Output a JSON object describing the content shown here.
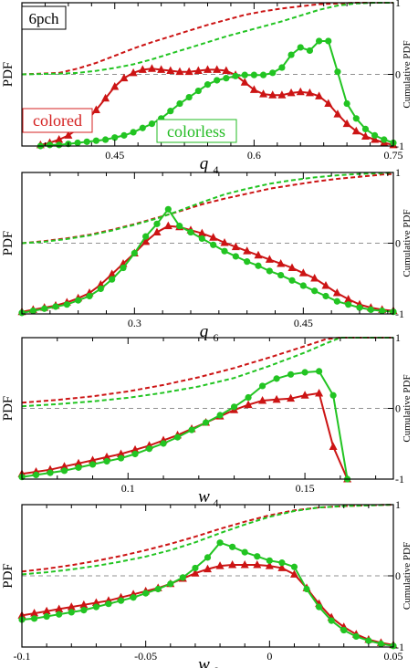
{
  "figure_label": "6pch",
  "legend": [
    {
      "text": "colored",
      "color": "#d42020"
    },
    {
      "text": "colorless",
      "color": "#22bb22"
    }
  ],
  "colors": {
    "colored": "#cc1414",
    "colorless": "#22c422",
    "reference_line": "#909090"
  },
  "chart_data": [
    {
      "type": "line",
      "xlabel": "q",
      "xlabel_sub": "4",
      "ylabel_left": "PDF",
      "ylabel_right": "Cumulative PDF",
      "xlim": [
        0.35,
        0.75
      ],
      "xticks": [
        "0.45",
        "0.6",
        "0.75"
      ],
      "right_ticks": [
        "1",
        "0",
        "-1"
      ],
      "series": [
        {
          "name": "colored",
          "marker": "triangle",
          "x": [
            0.37,
            0.38,
            0.39,
            0.4,
            0.41,
            0.42,
            0.43,
            0.44,
            0.45,
            0.46,
            0.47,
            0.48,
            0.49,
            0.5,
            0.51,
            0.52,
            0.53,
            0.54,
            0.55,
            0.56,
            0.57,
            0.58,
            0.59,
            0.6,
            0.61,
            0.62,
            0.63,
            0.64,
            0.65,
            0.66,
            0.67,
            0.68,
            0.69,
            0.7,
            0.71,
            0.72,
            0.73,
            0.74,
            0.75
          ],
          "y": [
            0.01,
            0.03,
            0.06,
            0.1,
            0.16,
            0.24,
            0.34,
            0.45,
            0.56,
            0.64,
            0.69,
            0.72,
            0.73,
            0.72,
            0.71,
            0.7,
            0.7,
            0.71,
            0.72,
            0.72,
            0.71,
            0.67,
            0.6,
            0.53,
            0.49,
            0.48,
            0.48,
            0.5,
            0.51,
            0.5,
            0.47,
            0.4,
            0.3,
            0.21,
            0.14,
            0.09,
            0.06,
            0.03,
            0.01
          ]
        },
        {
          "name": "colorless",
          "marker": "circle",
          "x": [
            0.37,
            0.38,
            0.39,
            0.4,
            0.41,
            0.42,
            0.43,
            0.44,
            0.45,
            0.46,
            0.47,
            0.48,
            0.49,
            0.5,
            0.51,
            0.52,
            0.53,
            0.54,
            0.55,
            0.56,
            0.57,
            0.58,
            0.59,
            0.6,
            0.61,
            0.62,
            0.63,
            0.64,
            0.65,
            0.66,
            0.67,
            0.68,
            0.69,
            0.7,
            0.71,
            0.72,
            0.73,
            0.74,
            0.75
          ],
          "y": [
            0.0,
            0.01,
            0.01,
            0.02,
            0.03,
            0.04,
            0.05,
            0.06,
            0.08,
            0.1,
            0.13,
            0.17,
            0.21,
            0.26,
            0.33,
            0.4,
            0.46,
            0.52,
            0.58,
            0.62,
            0.64,
            0.66,
            0.67,
            0.67,
            0.67,
            0.69,
            0.74,
            0.86,
            0.93,
            0.9,
            0.99,
            0.99,
            0.7,
            0.4,
            0.26,
            0.16,
            0.1,
            0.06,
            0.03
          ]
        },
        {
          "name": "colored",
          "style": "dashed",
          "axis": "right",
          "x": [
            0.35,
            0.39,
            0.41,
            0.43,
            0.45,
            0.47,
            0.49,
            0.51,
            0.53,
            0.55,
            0.57,
            0.59,
            0.61,
            0.63,
            0.65,
            0.67,
            0.69,
            0.71,
            0.73,
            0.75
          ],
          "y": [
            0.0,
            0.02,
            0.08,
            0.16,
            0.26,
            0.36,
            0.45,
            0.53,
            0.61,
            0.69,
            0.76,
            0.83,
            0.88,
            0.92,
            0.95,
            0.98,
            0.99,
            1.0,
            1.0,
            1.0
          ]
        },
        {
          "name": "colorless",
          "style": "dashed",
          "axis": "right",
          "x": [
            0.35,
            0.39,
            0.41,
            0.43,
            0.45,
            0.47,
            0.49,
            0.51,
            0.53,
            0.55,
            0.57,
            0.59,
            0.61,
            0.63,
            0.65,
            0.67,
            0.69,
            0.71,
            0.73,
            0.75
          ],
          "y": [
            0.0,
            0.01,
            0.02,
            0.05,
            0.09,
            0.14,
            0.21,
            0.29,
            0.37,
            0.45,
            0.53,
            0.6,
            0.67,
            0.74,
            0.82,
            0.9,
            0.96,
            0.99,
            1.0,
            1.0
          ]
        }
      ]
    },
    {
      "type": "line",
      "xlabel": "q",
      "xlabel_sub": "6",
      "ylabel_left": "PDF",
      "ylabel_right": "Cumulative PDF",
      "xlim": [
        0.2,
        0.53
      ],
      "xticks": [
        "0.3",
        "0.45"
      ],
      "right_ticks": [
        "1",
        "0",
        "-1"
      ],
      "series": [
        {
          "name": "colored",
          "marker": "triangle",
          "x": [
            0.2,
            0.21,
            0.22,
            0.23,
            0.24,
            0.25,
            0.26,
            0.27,
            0.28,
            0.29,
            0.3,
            0.31,
            0.32,
            0.33,
            0.34,
            0.35,
            0.36,
            0.37,
            0.38,
            0.39,
            0.4,
            0.41,
            0.42,
            0.43,
            0.44,
            0.45,
            0.46,
            0.47,
            0.48,
            0.49,
            0.5,
            0.51,
            0.52,
            0.53
          ],
          "y": [
            0.02,
            0.04,
            0.06,
            0.08,
            0.11,
            0.15,
            0.2,
            0.28,
            0.38,
            0.48,
            0.58,
            0.69,
            0.78,
            0.84,
            0.83,
            0.8,
            0.77,
            0.73,
            0.68,
            0.64,
            0.6,
            0.56,
            0.52,
            0.48,
            0.44,
            0.39,
            0.34,
            0.27,
            0.2,
            0.14,
            0.09,
            0.06,
            0.04,
            0.03
          ]
        },
        {
          "name": "colorless",
          "marker": "circle",
          "x": [
            0.2,
            0.21,
            0.22,
            0.23,
            0.24,
            0.25,
            0.26,
            0.27,
            0.28,
            0.29,
            0.3,
            0.31,
            0.32,
            0.33,
            0.34,
            0.35,
            0.36,
            0.37,
            0.38,
            0.39,
            0.4,
            0.41,
            0.42,
            0.43,
            0.44,
            0.45,
            0.46,
            0.47,
            0.48,
            0.49,
            0.5,
            0.51,
            0.52,
            0.53
          ],
          "y": [
            0.01,
            0.03,
            0.05,
            0.07,
            0.09,
            0.13,
            0.17,
            0.24,
            0.33,
            0.44,
            0.58,
            0.74,
            0.86,
            1.0,
            0.84,
            0.78,
            0.72,
            0.66,
            0.6,
            0.55,
            0.5,
            0.46,
            0.41,
            0.37,
            0.32,
            0.27,
            0.22,
            0.17,
            0.12,
            0.09,
            0.06,
            0.04,
            0.03,
            0.02
          ]
        },
        {
          "name": "colored",
          "style": "dashed",
          "axis": "right",
          "x": [
            0.2,
            0.22,
            0.24,
            0.26,
            0.28,
            0.3,
            0.32,
            0.34,
            0.36,
            0.38,
            0.4,
            0.42,
            0.44,
            0.46,
            0.48,
            0.5,
            0.52,
            0.53
          ],
          "y": [
            0.0,
            0.03,
            0.07,
            0.12,
            0.19,
            0.27,
            0.36,
            0.45,
            0.55,
            0.63,
            0.7,
            0.77,
            0.82,
            0.87,
            0.91,
            0.94,
            0.97,
            0.98
          ]
        },
        {
          "name": "colorless",
          "style": "dashed",
          "axis": "right",
          "x": [
            0.2,
            0.22,
            0.24,
            0.26,
            0.28,
            0.3,
            0.32,
            0.34,
            0.36,
            0.38,
            0.4,
            0.42,
            0.44,
            0.46,
            0.48,
            0.5,
            0.52,
            0.53
          ],
          "y": [
            0.0,
            0.02,
            0.06,
            0.11,
            0.18,
            0.26,
            0.35,
            0.46,
            0.58,
            0.69,
            0.77,
            0.84,
            0.89,
            0.93,
            0.96,
            0.98,
            0.99,
            1.0
          ]
        }
      ]
    },
    {
      "type": "line",
      "xlabel": "w",
      "xlabel_sub": "4",
      "ylabel_left": "PDF",
      "ylabel_right": "Cumulative PDF",
      "xlim": [
        0.07,
        0.175
      ],
      "xticks": [
        "0.1",
        "0.15"
      ],
      "right_ticks": [
        "1",
        "0",
        "-1"
      ],
      "series": [
        {
          "name": "colored",
          "marker": "triangle",
          "x": [
            0.07,
            0.074,
            0.078,
            0.082,
            0.086,
            0.09,
            0.094,
            0.098,
            0.102,
            0.106,
            0.11,
            0.114,
            0.118,
            0.122,
            0.126,
            0.13,
            0.134,
            0.138,
            0.142,
            0.146,
            0.15,
            0.154,
            0.158,
            0.162
          ],
          "y": [
            0.05,
            0.07,
            0.09,
            0.12,
            0.15,
            0.18,
            0.21,
            0.24,
            0.28,
            0.32,
            0.37,
            0.42,
            0.48,
            0.54,
            0.6,
            0.66,
            0.71,
            0.75,
            0.76,
            0.77,
            0.8,
            0.82,
            0.31,
            0.0
          ]
        },
        {
          "name": "colorless",
          "marker": "circle",
          "x": [
            0.07,
            0.074,
            0.078,
            0.082,
            0.086,
            0.09,
            0.094,
            0.098,
            0.102,
            0.106,
            0.11,
            0.114,
            0.118,
            0.122,
            0.126,
            0.13,
            0.134,
            0.138,
            0.142,
            0.146,
            0.15,
            0.154,
            0.158,
            0.162
          ],
          "y": [
            0.02,
            0.04,
            0.06,
            0.08,
            0.11,
            0.14,
            0.17,
            0.2,
            0.24,
            0.29,
            0.34,
            0.4,
            0.47,
            0.54,
            0.61,
            0.69,
            0.78,
            0.89,
            0.96,
            1.0,
            1.02,
            1.03,
            0.8,
            0.0
          ]
        },
        {
          "name": "colored",
          "style": "dashed",
          "axis": "right",
          "x": [
            0.07,
            0.08,
            0.09,
            0.1,
            0.11,
            0.12,
            0.13,
            0.14,
            0.15,
            0.156,
            0.16,
            0.175
          ],
          "y": [
            0.08,
            0.12,
            0.17,
            0.24,
            0.33,
            0.44,
            0.57,
            0.72,
            0.88,
            0.98,
            1.0,
            1.0
          ]
        },
        {
          "name": "colorless",
          "style": "dashed",
          "axis": "right",
          "x": [
            0.07,
            0.08,
            0.09,
            0.1,
            0.11,
            0.12,
            0.13,
            0.14,
            0.15,
            0.156,
            0.16,
            0.175
          ],
          "y": [
            0.03,
            0.06,
            0.1,
            0.15,
            0.22,
            0.31,
            0.43,
            0.6,
            0.79,
            0.92,
            1.0,
            1.0
          ]
        }
      ]
    },
    {
      "type": "line",
      "xlabel": "w",
      "xlabel_sub": "6",
      "ylabel_left": "PDF",
      "ylabel_right": "Cumulative PDF",
      "xlim": [
        -0.1,
        0.05
      ],
      "xticks": [
        "-0.1",
        "-0.05",
        "0",
        "0.05"
      ],
      "right_ticks": [
        "1",
        "0",
        "-1"
      ],
      "series": [
        {
          "name": "colored",
          "marker": "triangle",
          "x": [
            -0.1,
            -0.095,
            -0.09,
            -0.085,
            -0.08,
            -0.075,
            -0.07,
            -0.065,
            -0.06,
            -0.055,
            -0.05,
            -0.045,
            -0.04,
            -0.035,
            -0.03,
            -0.025,
            -0.02,
            -0.015,
            -0.01,
            -0.005,
            0.0,
            0.005,
            0.01,
            0.015,
            0.02,
            0.025,
            0.03,
            0.035,
            0.04,
            0.045,
            0.05
          ],
          "y": [
            0.3,
            0.32,
            0.34,
            0.36,
            0.38,
            0.4,
            0.42,
            0.44,
            0.47,
            0.5,
            0.53,
            0.56,
            0.6,
            0.65,
            0.7,
            0.74,
            0.77,
            0.78,
            0.78,
            0.78,
            0.77,
            0.75,
            0.69,
            0.56,
            0.41,
            0.28,
            0.19,
            0.12,
            0.07,
            0.04,
            0.02
          ]
        },
        {
          "name": "colorless",
          "marker": "circle",
          "x": [
            -0.1,
            -0.095,
            -0.09,
            -0.085,
            -0.08,
            -0.075,
            -0.07,
            -0.065,
            -0.06,
            -0.055,
            -0.05,
            -0.045,
            -0.04,
            -0.035,
            -0.03,
            -0.025,
            -0.02,
            -0.015,
            -0.01,
            -0.005,
            0.0,
            0.005,
            0.01,
            0.015,
            0.02,
            0.025,
            0.03,
            0.035,
            0.04,
            0.045,
            0.05
          ],
          "y": [
            0.26,
            0.27,
            0.29,
            0.31,
            0.33,
            0.35,
            0.38,
            0.41,
            0.44,
            0.47,
            0.51,
            0.55,
            0.6,
            0.66,
            0.75,
            0.85,
            0.99,
            0.95,
            0.9,
            0.86,
            0.82,
            0.8,
            0.76,
            0.55,
            0.38,
            0.25,
            0.16,
            0.1,
            0.06,
            0.03,
            0.01
          ]
        },
        {
          "name": "colored",
          "style": "dashed",
          "axis": "right",
          "x": [
            -0.1,
            -0.09,
            -0.08,
            -0.07,
            -0.06,
            -0.05,
            -0.04,
            -0.03,
            -0.02,
            -0.01,
            0.0,
            0.01,
            0.02,
            0.03,
            0.04,
            0.05
          ],
          "y": [
            0.06,
            0.1,
            0.15,
            0.21,
            0.28,
            0.36,
            0.45,
            0.55,
            0.66,
            0.76,
            0.85,
            0.92,
            0.96,
            0.98,
            0.99,
            1.0
          ]
        },
        {
          "name": "colorless",
          "style": "dashed",
          "axis": "right",
          "x": [
            -0.1,
            -0.09,
            -0.08,
            -0.07,
            -0.06,
            -0.05,
            -0.04,
            -0.03,
            -0.02,
            -0.01,
            0.0,
            0.01,
            0.02,
            0.03,
            0.04,
            0.05
          ],
          "y": [
            0.02,
            0.05,
            0.09,
            0.14,
            0.2,
            0.27,
            0.36,
            0.47,
            0.6,
            0.72,
            0.83,
            0.91,
            0.96,
            0.98,
            0.99,
            1.0
          ]
        }
      ]
    }
  ]
}
